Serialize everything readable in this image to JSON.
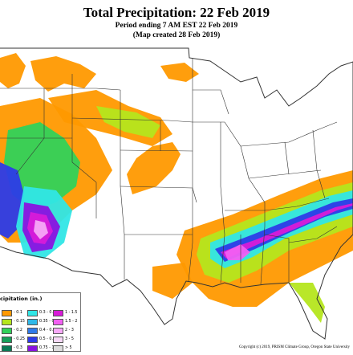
{
  "header": {
    "title": "Total Precipitation: 22 Feb 2019",
    "subtitle_1": "Period ending 7 AM EST 22 Feb 2019",
    "subtitle_2": "(Map created 28 Feb 2019)"
  },
  "legend": {
    "title": "cipitation (in.)",
    "items": [
      {
        "label": "- 0.1",
        "color": "#ff9900"
      },
      {
        "label": "- 0.15",
        "color": "#b5e61d"
      },
      {
        "label": "- 0.2",
        "color": "#31d25a"
      },
      {
        "label": "- 0.25",
        "color": "#17a05a"
      },
      {
        "label": "- 0.3",
        "color": "#0a7a55"
      },
      {
        "label": "0.3 - 0.35",
        "color": "#30e6e6"
      },
      {
        "label": "0.35 - 0.4",
        "color": "#2fb8e8"
      },
      {
        "label": "0.4 - 0.5",
        "color": "#2f7ae8"
      },
      {
        "label": "0.5 - 0.75",
        "color": "#2c3be8"
      },
      {
        "label": "0.75 - 1",
        "color": "#8a12e0"
      },
      {
        "label": "1 - 1.5",
        "color": "#d81bd8"
      },
      {
        "label": "1.5 - 2",
        "color": "#f25ff2"
      },
      {
        "label": "2 - 3",
        "color": "#f7a8f7"
      },
      {
        "label": "3 - 5",
        "color": "#f6d8f6"
      },
      {
        "label": "> 5",
        "color": "#dcdcdc"
      }
    ]
  },
  "copyright": "Copyright (c) 2019, PRISM Climate Group, Oregon State University",
  "colors": {
    "orange": "#ff9900",
    "dark_orange": "#e45c00",
    "lime": "#b5e61d",
    "green": "#31d25a",
    "cyan": "#30e6e6",
    "blue": "#2c3be8",
    "purple": "#8a12e0",
    "magenta": "#d81bd8",
    "pink": "#f25ff2",
    "light_pink": "#f7a8f7",
    "boundary": "#333333"
  }
}
